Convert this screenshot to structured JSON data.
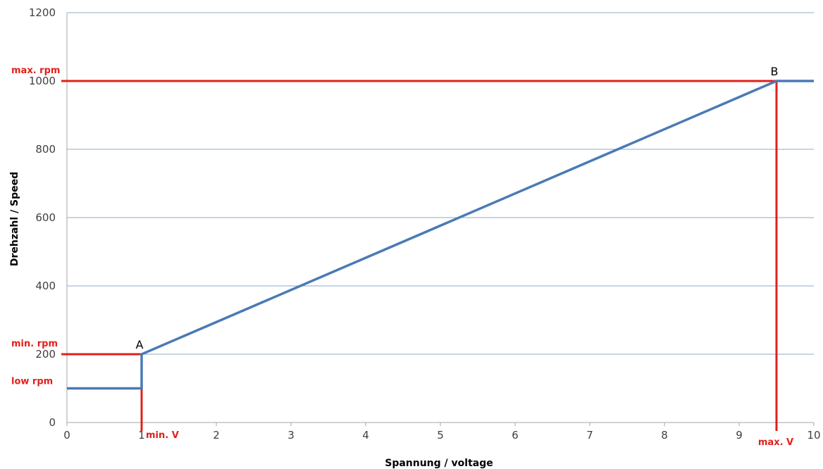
{
  "chart_data": {
    "type": "line",
    "title": "",
    "xlabel": "Spannung / voltage",
    "ylabel": "Drehzahl / Speed",
    "xlim": [
      0,
      10
    ],
    "ylim": [
      0,
      1200
    ],
    "x_ticks": [
      0,
      1,
      2,
      3,
      4,
      5,
      6,
      7,
      8,
      9,
      10
    ],
    "y_ticks": [
      0,
      200,
      400,
      600,
      800,
      1000,
      1200
    ],
    "grid": "horizontal",
    "legend": "none",
    "series": [
      {
        "color": "#4a7ab5",
        "x": [
          0,
          1,
          1,
          9.5,
          10
        ],
        "y": [
          100,
          100,
          200,
          1000,
          1000
        ]
      }
    ],
    "reference_lines": [
      {
        "label": "max. rpm",
        "orientation": "horizontal",
        "value": 1000,
        "from": 0,
        "to": 9.5,
        "color": "#e0201b"
      },
      {
        "label": "min. rpm",
        "orientation": "horizontal",
        "value": 200,
        "from": 0,
        "to": 1,
        "color": "#e0201b"
      },
      {
        "label": "min. V",
        "orientation": "vertical",
        "value": 1,
        "from": 0,
        "to": 200,
        "color": "#e0201b"
      },
      {
        "label": "max. V",
        "orientation": "vertical",
        "value": 9.5,
        "from": 0,
        "to": 1000,
        "color": "#e0201b"
      }
    ],
    "annotations": [
      {
        "text": "low rpm",
        "y": 100,
        "color": "#e0201b"
      }
    ],
    "points": [
      {
        "label": "A",
        "x": 1,
        "y": 200
      },
      {
        "label": "B",
        "x": 9.5,
        "y": 1000
      }
    ]
  }
}
